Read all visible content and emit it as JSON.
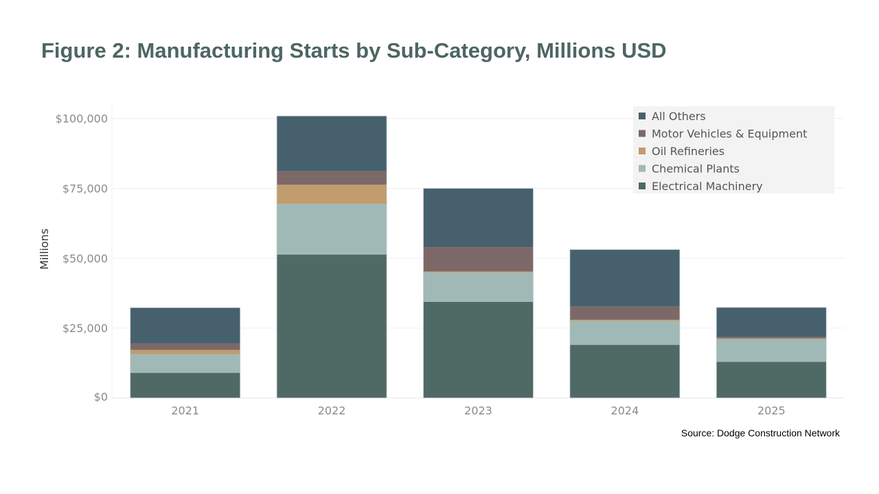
{
  "chart_data": {
    "type": "bar",
    "stacked": true,
    "title": "Figure 2: Manufacturing Starts by Sub-Category, Millions USD",
    "xlabel": "",
    "ylabel": "Millions",
    "source": "Source: Dodge Construction Network",
    "categories": [
      "2021",
      "2022",
      "2023",
      "2024",
      "2025"
    ],
    "ylim": [
      0,
      105000
    ],
    "yticks": [
      0,
      25000,
      50000,
      75000,
      100000
    ],
    "ytick_labels": [
      "$0",
      "$25,000",
      "$50,000",
      "$75,000",
      "$100,000"
    ],
    "grid": true,
    "legend_position": "top-right",
    "series": [
      {
        "name": "Electrical Machinery",
        "color": "#4f6964",
        "values": [
          9000,
          51300,
          34400,
          19000,
          12900
        ]
      },
      {
        "name": "Chemical Plants",
        "color": "#a1b9b6",
        "values": [
          6700,
          18200,
          10500,
          8600,
          8100
        ]
      },
      {
        "name": "Oil Refineries",
        "color": "#c19c6c",
        "values": [
          1500,
          6800,
          400,
          400,
          300
        ]
      },
      {
        "name": "Motor Vehicles & Equipment",
        "color": "#7d6868",
        "values": [
          2300,
          4800,
          8700,
          4700,
          500
        ]
      },
      {
        "name": "All Others",
        "color": "#46616d",
        "values": [
          12800,
          19800,
          21000,
          20400,
          10600
        ]
      }
    ]
  }
}
